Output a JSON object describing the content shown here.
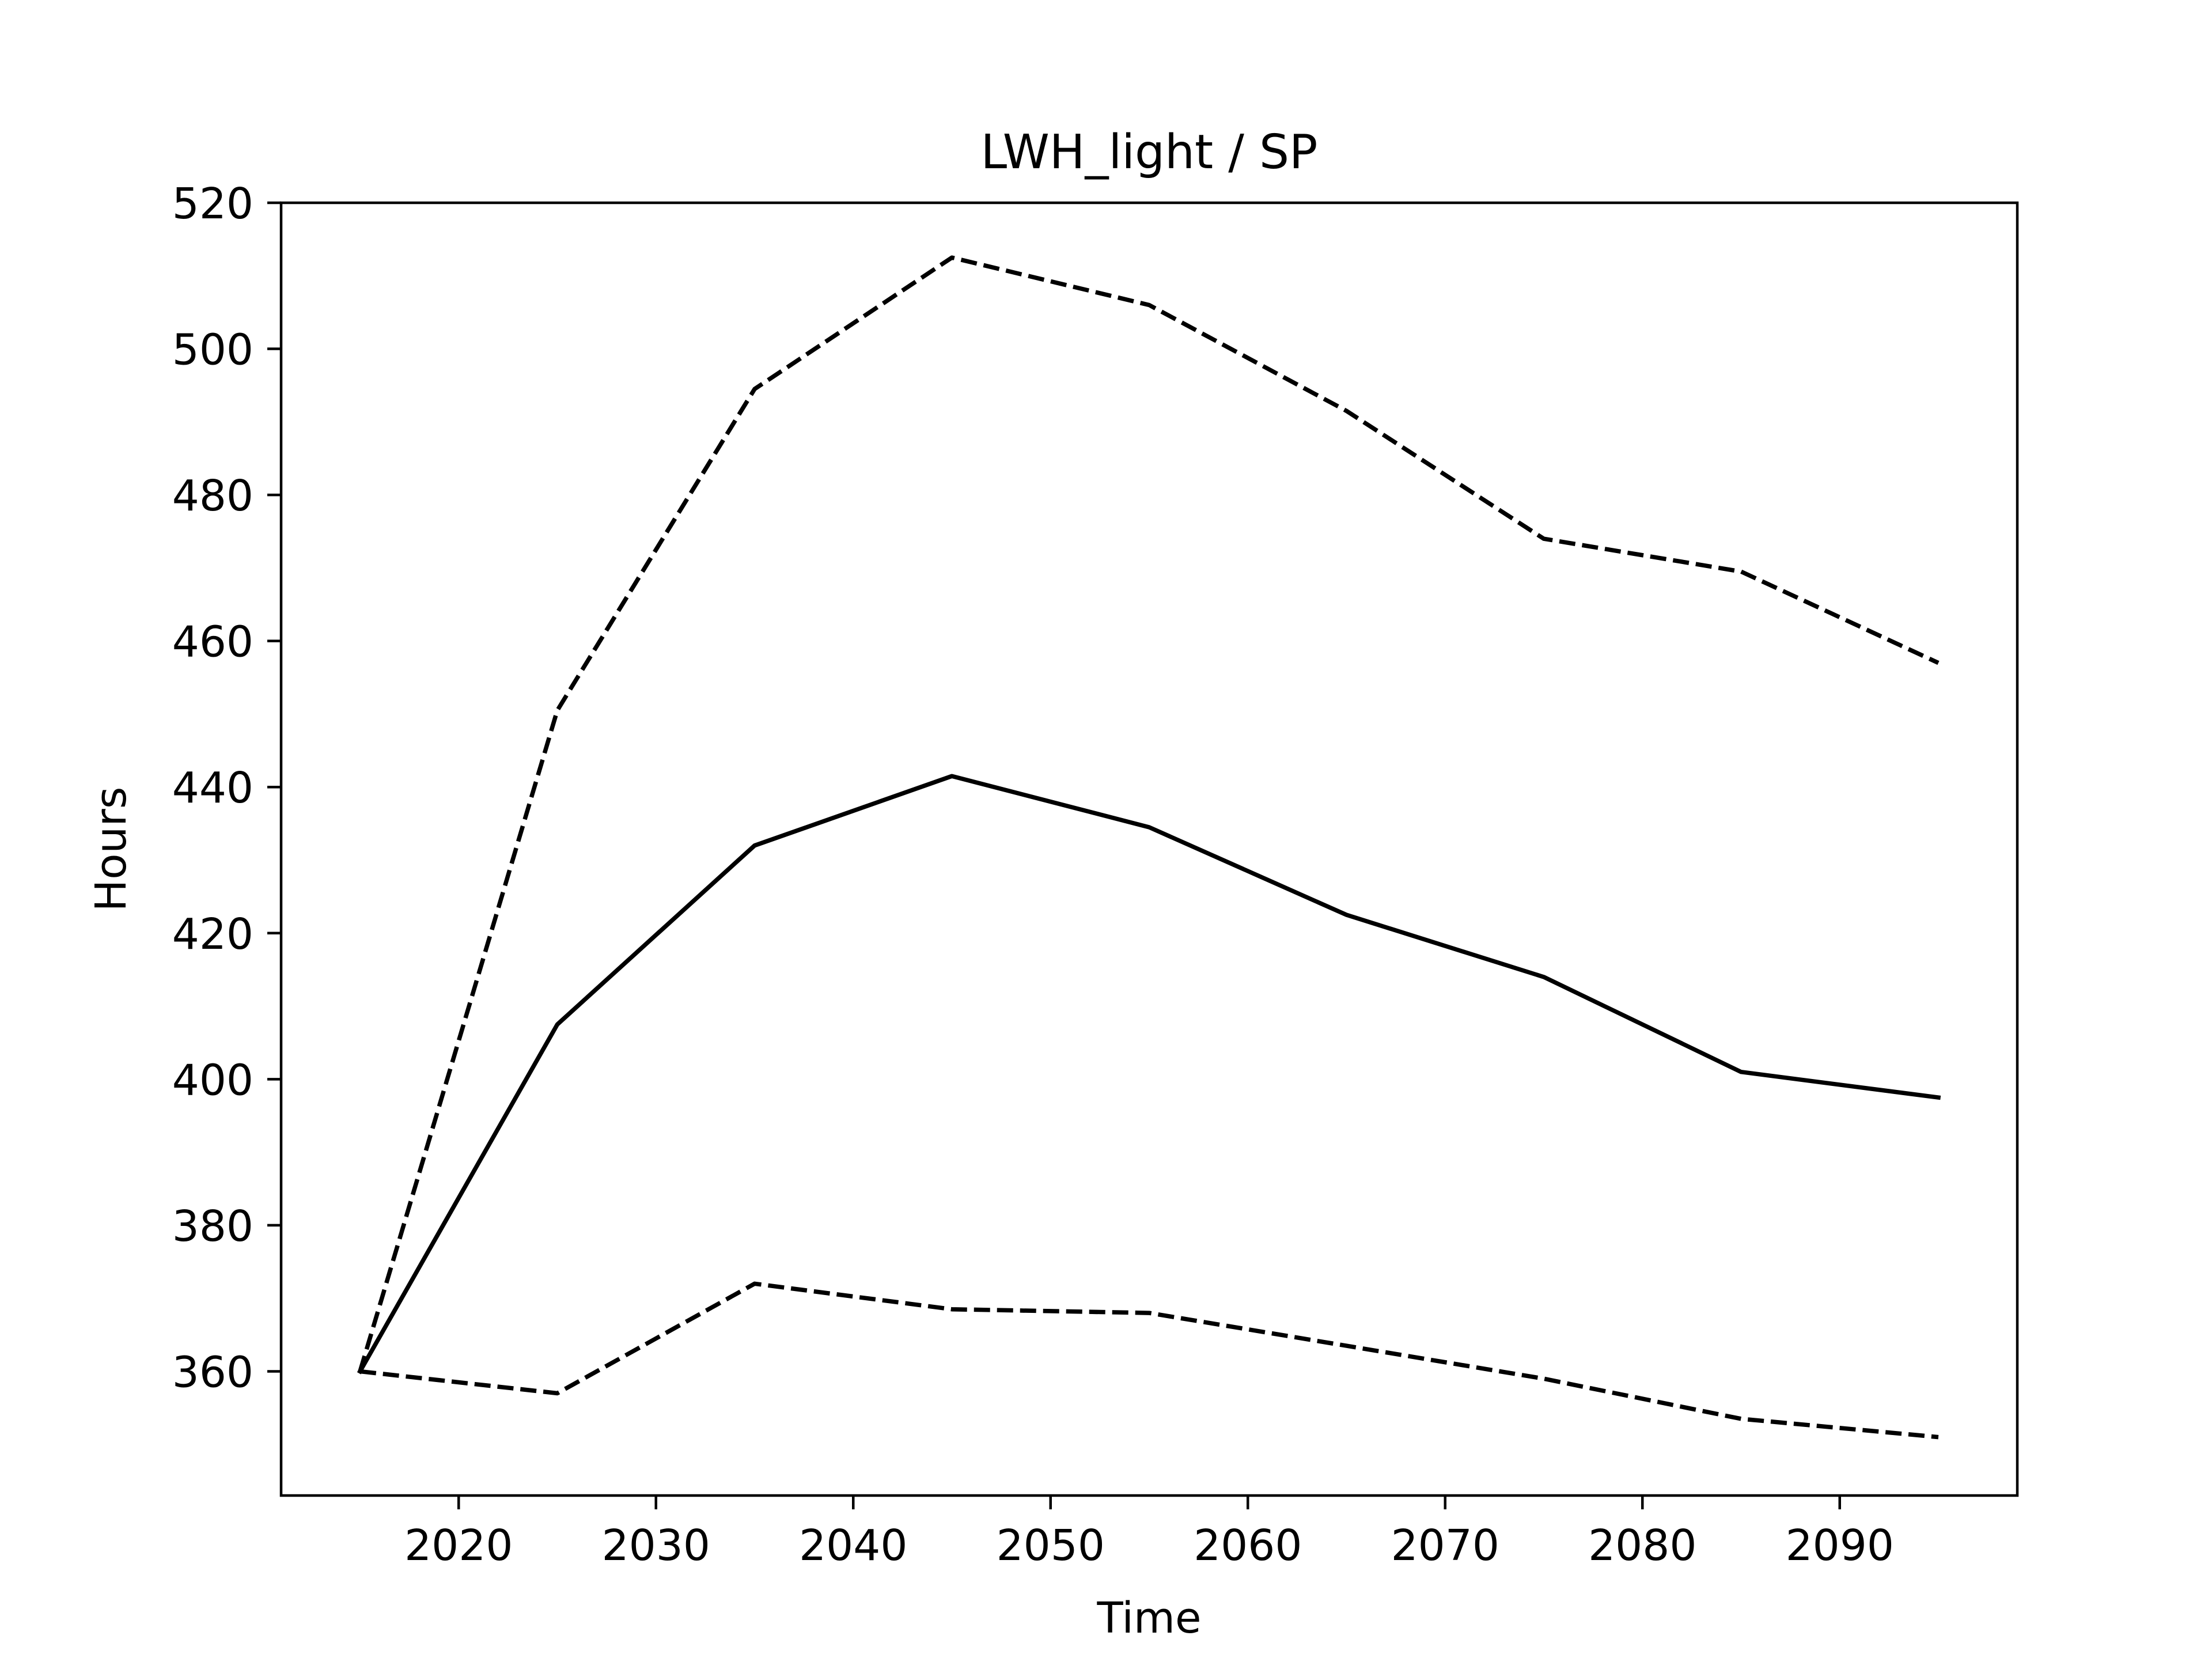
{
  "chart_data": {
    "type": "line",
    "title": "LWH_light / SP",
    "xlabel": "Time",
    "ylabel": "Hours",
    "xlim": [
      2011,
      2099
    ],
    "ylim": [
      343,
      520
    ],
    "grid": false,
    "x_ticks": [
      2020,
      2030,
      2040,
      2050,
      2060,
      2070,
      2080,
      2090
    ],
    "y_ticks": [
      360,
      380,
      400,
      420,
      440,
      460,
      480,
      500,
      520
    ],
    "x": [
      2015,
      2025,
      2035,
      2045,
      2055,
      2065,
      2075,
      2085,
      2095
    ],
    "series": [
      {
        "style": "dashed",
        "color": "#000000",
        "values": [
          360,
          450.5,
          494.5,
          512.5,
          506,
          491.5,
          474,
          469.5,
          457
        ]
      },
      {
        "style": "solid",
        "color": "#000000",
        "values": [
          360,
          407.5,
          432,
          441.5,
          434.5,
          422.5,
          414,
          401,
          397.5
        ]
      },
      {
        "style": "dashed",
        "color": "#000000",
        "values": [
          360,
          357,
          372,
          368.5,
          368,
          363.5,
          359,
          353.5,
          351
        ]
      }
    ]
  }
}
